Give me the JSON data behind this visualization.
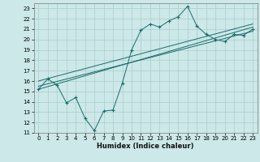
{
  "xlabel": "Humidex (Indice chaleur)",
  "background_color": "#cce8e8",
  "grid_color": "#aacccc",
  "line_color": "#1a6b6b",
  "xlim": [
    -0.5,
    23.5
  ],
  "ylim": [
    11,
    23.5
  ],
  "yticks": [
    11,
    12,
    13,
    14,
    15,
    16,
    17,
    18,
    19,
    20,
    21,
    22,
    23
  ],
  "xticks": [
    0,
    1,
    2,
    3,
    4,
    5,
    6,
    7,
    8,
    9,
    10,
    11,
    12,
    13,
    14,
    15,
    16,
    17,
    18,
    19,
    20,
    21,
    22,
    23
  ],
  "curve1_x": [
    0,
    1,
    2,
    3,
    4,
    5,
    6,
    7,
    8,
    9,
    10,
    11,
    12,
    13,
    14,
    15,
    16,
    17,
    18,
    19,
    20,
    21,
    22,
    23
  ],
  "curve1_y": [
    15.2,
    16.2,
    15.6,
    13.9,
    14.4,
    12.4,
    11.2,
    13.1,
    13.2,
    15.8,
    19.0,
    20.9,
    21.5,
    21.2,
    21.8,
    22.2,
    23.2,
    21.3,
    20.5,
    20.0,
    19.8,
    20.5,
    20.4,
    21.0
  ],
  "trend1_x": [
    0,
    23
  ],
  "trend1_y": [
    15.2,
    21.2
  ],
  "trend2_x": [
    0,
    23
  ],
  "trend2_y": [
    15.5,
    20.8
  ],
  "trend3_x": [
    0,
    23
  ],
  "trend3_y": [
    16.0,
    21.5
  ],
  "tick_fontsize": 5,
  "xlabel_fontsize": 6
}
